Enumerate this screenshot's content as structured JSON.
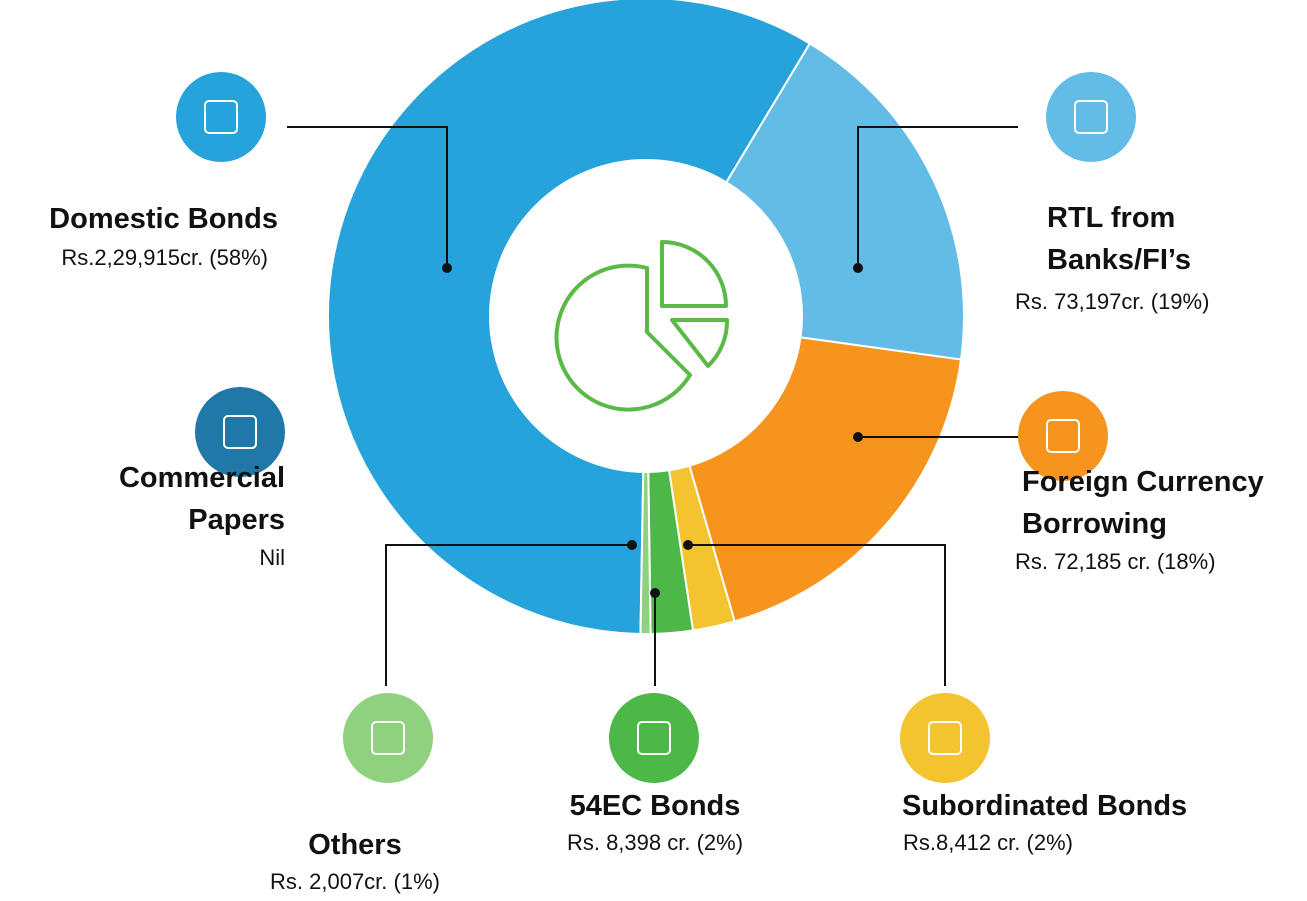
{
  "chart_data": {
    "type": "donut",
    "categories": [
      "Domestic Bonds",
      "RTL from Banks/FI’s",
      "Foreign Currency Borrowing",
      "Subordinated Bonds",
      "54EC Bonds",
      "Others",
      "Commercial Papers"
    ],
    "values": [
      229915,
      73197,
      72185,
      8412,
      8398,
      2007,
      0
    ],
    "value_labels": [
      "Rs.2,29,915cr. (58%)",
      "Rs. 73,197cr. (19%)",
      "Rs. 72,185 cr. (18%)",
      "Rs.8,412 cr. (2%)",
      "Rs. 8,398 cr. (2%)",
      "Rs. 2,007cr. (1%)",
      "Nil"
    ],
    "colors": [
      "#27a3dc",
      "#63bce6",
      "#f7941d",
      "#f4c430",
      "#4db848",
      "#8fd17e",
      "#1f78a8"
    ]
  }
}
